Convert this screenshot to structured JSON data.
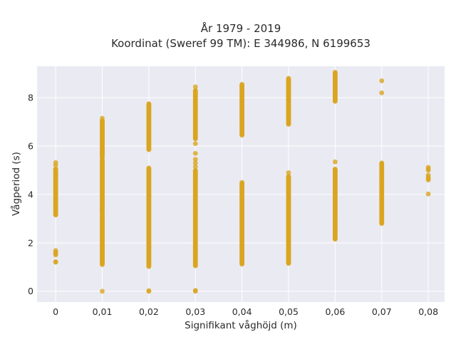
{
  "chart_data": {
    "type": "scatter",
    "title_line1": "År 1979 - 2019",
    "title_line2": "Koordinat (Sweref 99 TM): E 344986, N 6199653",
    "xlabel": "Signifikant våghöjd (m)",
    "ylabel": "Vågperiod (s)",
    "x_ticks": [
      "0",
      "0,01",
      "0,02",
      "0,03",
      "0,04",
      "0,05",
      "0,06",
      "0,07",
      "0,08"
    ],
    "x_values": [
      0,
      0.01,
      0.02,
      0.03,
      0.04,
      0.05,
      0.06,
      0.07,
      0.08
    ],
    "y_ticks": [
      "0",
      "2",
      "4",
      "6",
      "8"
    ],
    "y_tick_values": [
      0,
      2,
      4,
      6,
      8
    ],
    "xlim": [
      -0.004,
      0.0835
    ],
    "ylim": [
      -0.45,
      9.3
    ],
    "grid": true,
    "legend": "none",
    "colors": {
      "marker": "#d9a521",
      "plot_background": "#eaeaf2",
      "grid": "#ffffff"
    },
    "columns": [
      {
        "x": 0,
        "clusters": [
          [
            3.15,
            5.05
          ]
        ],
        "points": [
          1.2,
          1.22,
          1.5,
          1.55,
          1.62,
          1.68,
          5.2,
          5.32
        ]
      },
      {
        "x": 0.01,
        "clusters": [
          [
            1.1,
            3.1
          ],
          [
            3.2,
            5.45
          ],
          [
            5.55,
            7.05
          ]
        ],
        "points": [
          0.0,
          7.15,
          3.15
        ]
      },
      {
        "x": 0.02,
        "clusters": [
          [
            1.02,
            5.1
          ],
          [
            5.85,
            7.75
          ]
        ],
        "points": [
          0.0,
          0.02
        ]
      },
      {
        "x": 0.03,
        "clusters": [
          [
            1.05,
            5.0
          ],
          [
            6.3,
            8.3
          ]
        ],
        "points": [
          0.0,
          0.03,
          5.15,
          5.3,
          5.45,
          5.7,
          6.1,
          8.45
        ]
      },
      {
        "x": 0.04,
        "clusters": [
          [
            1.12,
            4.5
          ],
          [
            6.45,
            8.55
          ]
        ],
        "points": []
      },
      {
        "x": 0.05,
        "clusters": [
          [
            1.15,
            4.75
          ],
          [
            6.9,
            8.8
          ]
        ],
        "points": [
          4.9
        ]
      },
      {
        "x": 0.06,
        "clusters": [
          [
            2.15,
            5.05
          ],
          [
            7.85,
            9.05
          ]
        ],
        "points": [
          5.35
        ]
      },
      {
        "x": 0.07,
        "clusters": [
          [
            2.8,
            5.3
          ]
        ],
        "points": [
          8.2,
          8.7
        ]
      },
      {
        "x": 0.08,
        "clusters": [],
        "points": [
          4.02,
          4.6,
          4.65,
          4.72,
          4.8,
          5.0,
          5.05,
          5.12
        ]
      }
    ]
  }
}
